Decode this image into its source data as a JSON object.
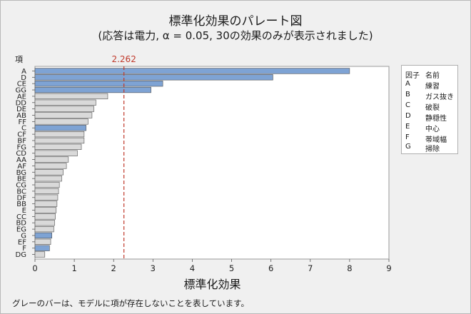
{
  "header": {
    "title": "標準化効果のパレート図",
    "subtitle": "(応答は電力, α = 0.05, 30の効果のみが表示されました)"
  },
  "chart_data": {
    "type": "bar",
    "orientation": "horizontal",
    "title": "標準化効果のパレート図",
    "subtitle": "(応答は電力, α = 0.05, 30の効果のみが表示されました)",
    "xlabel": "標準化効果",
    "ylabel": "項",
    "xlim": [
      0,
      9
    ],
    "xticks": [
      "0",
      "1",
      "2",
      "3",
      "4",
      "5",
      "6",
      "7",
      "8",
      "9"
    ],
    "reference_line": {
      "value": 2.262,
      "label": "2.262",
      "color": "#c0392b",
      "style": "dashed"
    },
    "categories": [
      "A",
      "D",
      "CE",
      "GG",
      "AE",
      "DD",
      "DE",
      "AB",
      "FF",
      "C",
      "CF",
      "BF",
      "FG",
      "CD",
      "AA",
      "AF",
      "BG",
      "BE",
      "CG",
      "BC",
      "DF",
      "BB",
      "E",
      "CC",
      "BD",
      "EG",
      "G",
      "EF",
      "F",
      "DG"
    ],
    "values": [
      8.0,
      6.05,
      3.25,
      2.95,
      1.85,
      1.55,
      1.5,
      1.45,
      1.35,
      1.3,
      1.25,
      1.25,
      1.18,
      1.08,
      0.85,
      0.8,
      0.72,
      0.68,
      0.62,
      0.6,
      0.58,
      0.56,
      0.54,
      0.52,
      0.5,
      0.48,
      0.43,
      0.4,
      0.37,
      0.25
    ],
    "in_model": [
      true,
      true,
      true,
      true,
      false,
      false,
      false,
      false,
      false,
      true,
      false,
      false,
      false,
      false,
      false,
      false,
      false,
      false,
      false,
      false,
      false,
      false,
      false,
      false,
      false,
      false,
      true,
      false,
      true,
      false
    ],
    "colors": {
      "in_model": "#7ea3d4",
      "not_in_model": "#d9d9d9",
      "bar_stroke": "#505050",
      "reference": "#c0392b"
    },
    "legend": {
      "header": {
        "factor": "因子",
        "name": "名前"
      },
      "items": [
        {
          "factor": "A",
          "name": "練習"
        },
        {
          "factor": "B",
          "name": "ガス抜き"
        },
        {
          "factor": "C",
          "name": "破裂"
        },
        {
          "factor": "D",
          "name": "静穏性"
        },
        {
          "factor": "E",
          "name": "中心"
        },
        {
          "factor": "F",
          "name": "帯域幅"
        },
        {
          "factor": "G",
          "name": "掃除"
        }
      ]
    }
  },
  "footnote": "グレーのバーは、モデルに項が存在しないことを表しています。"
}
